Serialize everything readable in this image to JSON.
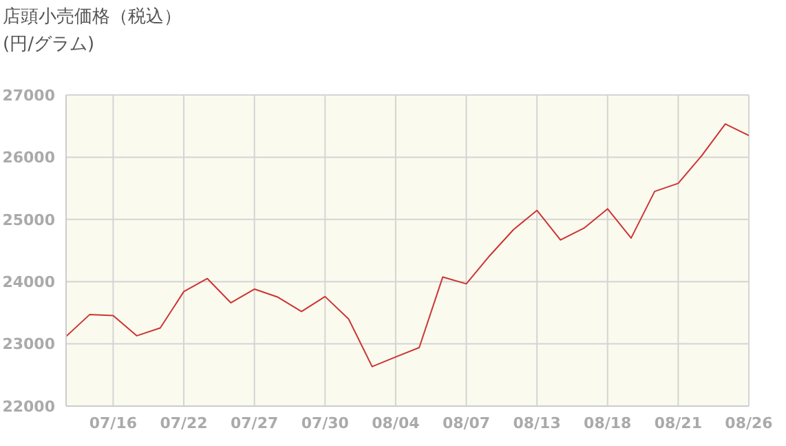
{
  "chart_data": {
    "type": "line",
    "title": "店頭小売価格（税込）",
    "subtitle": "(円/グラム)",
    "categories": [
      null,
      null,
      "07/16",
      null,
      null,
      "07/22",
      null,
      null,
      "07/27",
      null,
      null,
      "07/30",
      null,
      null,
      "08/04",
      null,
      null,
      "08/07",
      null,
      null,
      "08/13",
      null,
      null,
      "08/18",
      null,
      null,
      "08/21",
      null,
      null,
      "08/26"
    ],
    "series": [
      {
        "color": "#cc3333",
        "values": [
          23120,
          23470,
          23455,
          23130,
          23255,
          23840,
          24050,
          23660,
          23880,
          23750,
          23520,
          23760,
          23400,
          22635,
          22790,
          22940,
          24075,
          23965,
          24420,
          24835,
          25145,
          24670,
          24860,
          25170,
          24700,
          25450,
          25580,
          26025,
          26535,
          26350
        ]
      }
    ],
    "ylim": [
      22000,
      27000
    ],
    "yticks": [
      22000,
      23000,
      24000,
      25000,
      26000,
      27000
    ],
    "grid": true,
    "legend": false,
    "marker": "none",
    "line_style": "solid"
  }
}
